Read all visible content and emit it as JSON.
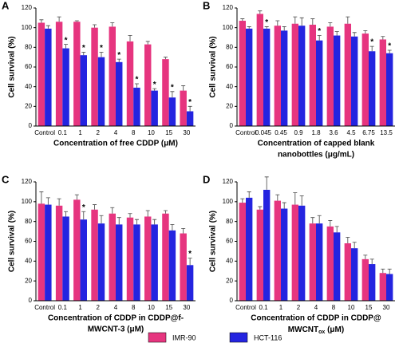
{
  "chart_data": [
    {
      "type": "bar",
      "panel": "A",
      "ylabel": "Cell survival (%)",
      "xlabel": [
        "Concentration of free CDDP (μM)"
      ],
      "categories": [
        "Control",
        "0.1",
        "1",
        "2",
        "4",
        "8",
        "10",
        "15",
        "30"
      ],
      "series": [
        {
          "values": [
            105,
            106,
            106,
            100,
            101,
            86,
            83,
            68,
            36
          ],
          "errors": [
            3,
            5,
            1,
            3,
            4,
            6,
            3,
            2,
            5
          ]
        },
        {
          "values": [
            99,
            79,
            72,
            70,
            65,
            39,
            36,
            29,
            15
          ],
          "errors": [
            3,
            4,
            3,
            5,
            3,
            4,
            2,
            6,
            5
          ],
          "labels": [
            null,
            "*",
            "*",
            "*",
            "*",
            "*",
            "*",
            "*",
            "*"
          ]
        }
      ],
      "ylim": [
        0,
        120
      ],
      "yticks": [
        0,
        20,
        40,
        60,
        80,
        100,
        120
      ]
    },
    {
      "type": "bar",
      "panel": "B",
      "ylabel": "Cell survival (%)",
      "xlabel": [
        "Concentration of capped blank",
        "nanobottles (μg/mL)"
      ],
      "categories": [
        "Control",
        "0.045",
        "0.45",
        "0.9",
        "1.8",
        "3.6",
        "4.5",
        "6.75",
        "13.5"
      ],
      "series": [
        {
          "values": [
            107,
            114,
            102,
            104,
            103,
            101,
            104,
            94,
            88
          ],
          "errors": [
            2,
            3,
            5,
            7,
            6,
            4,
            7,
            3,
            3
          ]
        },
        {
          "values": [
            99,
            99,
            97,
            102,
            87,
            92,
            91,
            76,
            74
          ],
          "errors": [
            2,
            2,
            4,
            8,
            5,
            4,
            4,
            5,
            3
          ],
          "labels": [
            null,
            "*",
            null,
            null,
            "*",
            null,
            null,
            "*",
            "*"
          ]
        }
      ],
      "ylim": [
        0,
        120
      ],
      "yticks": [
        0,
        20,
        40,
        60,
        80,
        100,
        120
      ]
    },
    {
      "type": "bar",
      "panel": "C",
      "ylabel": "Cell survival (%)",
      "xlabel": [
        "Concentration of CDDP in CDDP@f-",
        "MWCNT-3 (μM)"
      ],
      "categories": [
        "Control",
        "0.1",
        "1",
        "2",
        "4",
        "8",
        "10",
        "15",
        "30"
      ],
      "series": [
        {
          "values": [
            98,
            96,
            102,
            92,
            88,
            84,
            85,
            88,
            68
          ],
          "errors": [
            12,
            7,
            5,
            5,
            6,
            4,
            6,
            3,
            5
          ]
        },
        {
          "values": [
            97,
            85,
            82,
            78,
            77,
            77,
            77,
            71,
            36
          ],
          "errors": [
            7,
            5,
            8,
            8,
            7,
            5,
            5,
            6,
            7
          ],
          "labels": [
            null,
            null,
            "*",
            null,
            null,
            null,
            null,
            null,
            "*"
          ]
        }
      ],
      "ylim": [
        0,
        120
      ],
      "yticks": [
        0,
        20,
        40,
        60,
        80,
        100,
        120
      ]
    },
    {
      "type": "bar",
      "panel": "D",
      "ylabel": "Cell survival (%)",
      "xlabel": [
        "Concentration of CDDP in CDDP@",
        "MWCNT",
        "ox",
        " (μM)"
      ],
      "categories": [
        "Control",
        "0.1",
        "1",
        "2",
        "4",
        "8",
        "10",
        "15",
        "30"
      ],
      "series": [
        {
          "values": [
            99,
            92,
            101,
            97,
            78,
            75,
            58,
            42,
            28
          ],
          "errors": [
            4,
            3,
            6,
            12,
            6,
            6,
            6,
            4,
            4
          ]
        },
        {
          "values": [
            104,
            112,
            93,
            96,
            78,
            69,
            53,
            37,
            27
          ],
          "errors": [
            6,
            13,
            6,
            10,
            8,
            6,
            6,
            5,
            5
          ]
        }
      ],
      "ylim": [
        0,
        120
      ],
      "yticks": [
        0,
        20,
        40,
        60,
        80,
        100,
        120
      ]
    }
  ],
  "legend": [
    {
      "name": "IMR-90",
      "color": "#e6357f"
    },
    {
      "name": "HCT-116",
      "color": "#2424e0"
    }
  ]
}
